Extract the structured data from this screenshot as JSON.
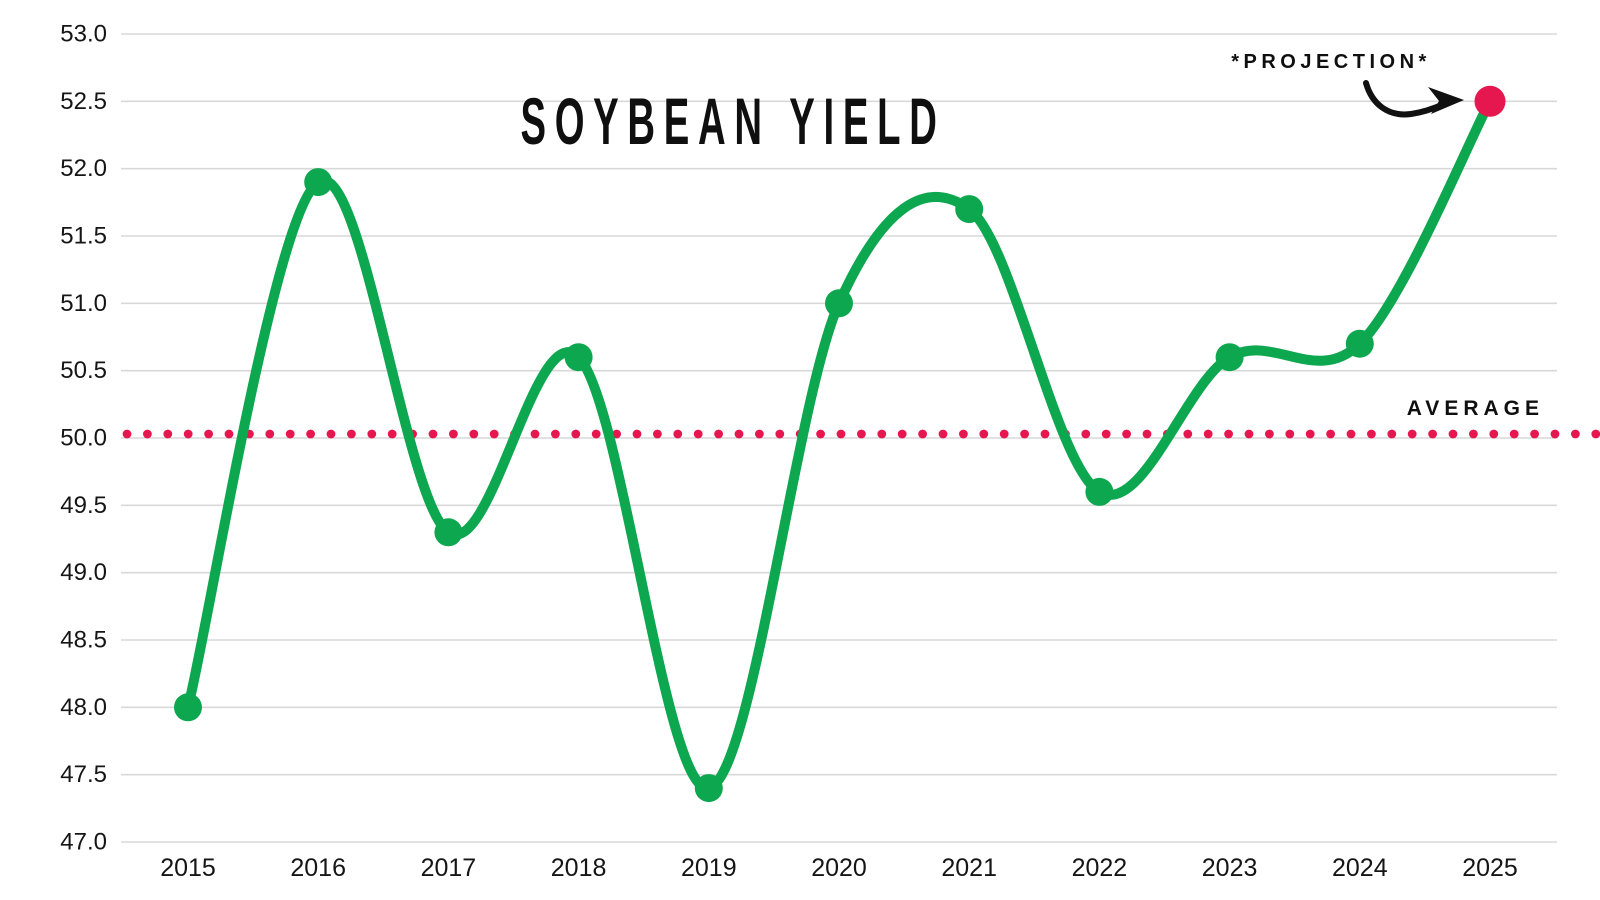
{
  "chart_data": {
    "type": "line",
    "title": "SOYBEAN YIELD",
    "categories": [
      "2015",
      "2016",
      "2017",
      "2018",
      "2019",
      "2020",
      "2021",
      "2022",
      "2023",
      "2024",
      "2025"
    ],
    "series": [
      {
        "name": "Soybean Yield",
        "values": [
          48.0,
          51.9,
          49.3,
          50.6,
          47.4,
          51.0,
          51.7,
          49.6,
          50.6,
          50.7,
          52.5
        ]
      }
    ],
    "yticks": [
      "53.0",
      "52.5",
      "52.0",
      "51.5",
      "51.0",
      "50.5",
      "50.0",
      "49.5",
      "49.0",
      "48.5",
      "48.0",
      "47.5",
      "47.0"
    ],
    "ylim": [
      47.0,
      53.0
    ],
    "grid": "horizontal",
    "legend": "none",
    "average_line": {
      "value": 50.0,
      "label": "AVERAGE",
      "style": "dotted"
    },
    "annotations": {
      "projection_label": "*PROJECTION*",
      "projection_point": {
        "category": "2025",
        "value": 52.5
      }
    },
    "colors": {
      "line": "#0da750",
      "marker": "#0da750",
      "projection": "#e6174f",
      "average_dots": "#e6174f",
      "grid": "#d8d8d8",
      "text": "#151515",
      "title": "#0f0f0f",
      "arrow": "#111111"
    }
  }
}
